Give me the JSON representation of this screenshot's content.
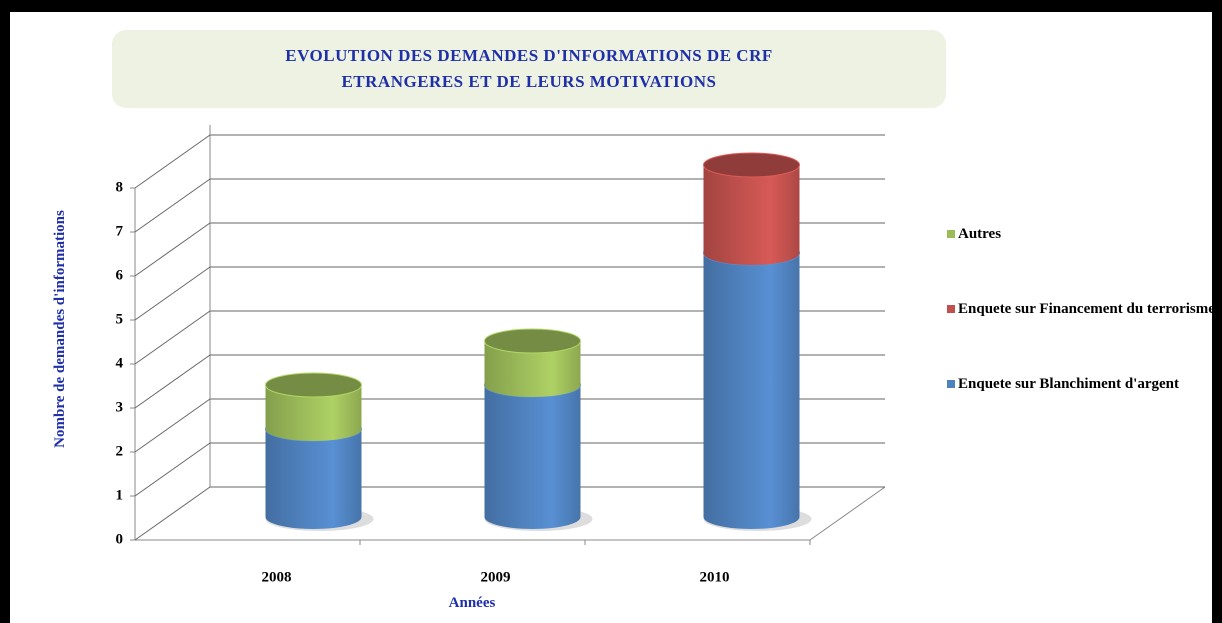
{
  "chart_data": {
    "type": "bar3d-stacked",
    "title": "EVOLUTION DES DEMANDES D'INFORMATIONS DE CRF ETRANGERES ET DE LEURS MOTIVATIONS",
    "xlabel": "Années",
    "ylabel": "Nombre de demandes d'informations",
    "categories": [
      "2008",
      "2009",
      "2010"
    ],
    "series": [
      {
        "name": "Enquete sur Blanchiment d'argent",
        "color": "#4f81bd",
        "values": [
          2,
          3,
          6
        ]
      },
      {
        "name": "Enquete sur Financement du terrorisme",
        "color": "#c0504d",
        "values": [
          0,
          0,
          2
        ]
      },
      {
        "name": "Autres",
        "color": "#9bbb59",
        "values": [
          1,
          1,
          0
        ]
      }
    ],
    "ylim": [
      0,
      8
    ],
    "yticks": [
      0,
      1,
      2,
      3,
      4,
      5,
      6,
      7,
      8
    ],
    "grid": true
  }
}
